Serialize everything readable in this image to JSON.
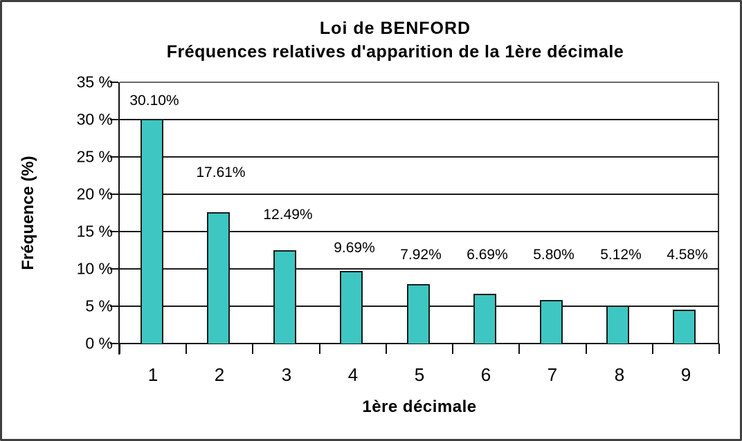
{
  "window": {
    "background_color": "#ffffff",
    "frame_border_color": "#3f3f3f"
  },
  "chart_data": {
    "type": "bar",
    "title": "Loi de BENFORD",
    "subtitle": "Fréquences relatives d'apparition de la 1ère décimale",
    "xlabel": "1ère décimale",
    "ylabel": "Fréquence (%)",
    "categories": [
      "1",
      "2",
      "3",
      "4",
      "5",
      "6",
      "7",
      "8",
      "9"
    ],
    "values": [
      30.1,
      17.61,
      12.49,
      9.69,
      7.92,
      6.69,
      5.8,
      5.12,
      4.58
    ],
    "data_labels": [
      "30.10%",
      "17.61%",
      "12.49%",
      "9.69%",
      "7.92%",
      "6.69%",
      "5.80%",
      "5.12%",
      "4.58%"
    ],
    "y_ticks": [
      "35 %",
      "30 %",
      "25 %",
      "20 %",
      "15 %",
      "10 %",
      "5 %",
      "0 %"
    ],
    "ylim": [
      0,
      35
    ],
    "y_tick_step": 5,
    "grid": "horizontal",
    "legend": "none",
    "bar_color": "#3ec7c2",
    "bar_border_color": "#1a1a1a",
    "line_color": "#1a1a1a",
    "text_color": "#000000"
  }
}
